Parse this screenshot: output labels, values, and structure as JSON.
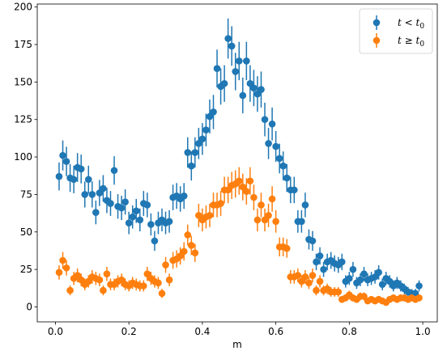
{
  "chart_data": {
    "type": "scatter",
    "title": "",
    "xlabel": "m",
    "ylabel": "",
    "xlim": [
      -0.0495,
      1.0395
    ],
    "ylim": [
      -10,
      202
    ],
    "xticks": [
      0.0,
      0.2,
      0.4,
      0.6,
      0.8,
      1.0
    ],
    "yticks": [
      0,
      25,
      50,
      75,
      100,
      125,
      150,
      175,
      200
    ],
    "xtick_labels": [
      "0.0",
      "0.2",
      "0.4",
      "0.6",
      "0.8",
      "1.0"
    ],
    "ytick_labels": [
      "0",
      "25",
      "50",
      "75",
      "100",
      "125",
      "150",
      "175",
      "200"
    ],
    "grid": false,
    "legend_position": "top-right",
    "x": [
      0.01,
      0.02,
      0.03,
      0.04,
      0.05,
      0.06,
      0.07,
      0.08,
      0.09,
      0.1,
      0.11,
      0.12,
      0.13,
      0.14,
      0.15,
      0.16,
      0.17,
      0.18,
      0.19,
      0.2,
      0.21,
      0.22,
      0.23,
      0.24,
      0.25,
      0.26,
      0.27,
      0.28,
      0.29,
      0.3,
      0.31,
      0.32,
      0.33,
      0.34,
      0.35,
      0.36,
      0.37,
      0.38,
      0.39,
      0.4,
      0.41,
      0.42,
      0.43,
      0.44,
      0.45,
      0.46,
      0.47,
      0.48,
      0.49,
      0.5,
      0.51,
      0.52,
      0.53,
      0.54,
      0.55,
      0.56,
      0.57,
      0.58,
      0.59,
      0.6,
      0.61,
      0.62,
      0.63,
      0.64,
      0.65,
      0.66,
      0.67,
      0.68,
      0.69,
      0.7,
      0.71,
      0.72,
      0.73,
      0.74,
      0.75,
      0.76,
      0.77,
      0.78,
      0.79,
      0.8,
      0.81,
      0.82,
      0.83,
      0.84,
      0.85,
      0.86,
      0.87,
      0.88,
      0.89,
      0.9,
      0.91,
      0.92,
      0.93,
      0.94,
      0.95,
      0.96,
      0.97,
      0.98,
      0.99
    ],
    "series": [
      {
        "name": "t < t₀",
        "legend_main": "t",
        "legend_rel": " < ",
        "legend_sub_base": "t",
        "legend_sub": "0",
        "color": "#1f77b4",
        "values": [
          87,
          101,
          97,
          86,
          85,
          93,
          92,
          75,
          85,
          75,
          63,
          76,
          79,
          71,
          69,
          91,
          67,
          66,
          70,
          56,
          60,
          64,
          58,
          69,
          68,
          55,
          44,
          56,
          58,
          56,
          57,
          73,
          74,
          72,
          74,
          103,
          94,
          103,
          109,
          112,
          118,
          127,
          130,
          159,
          147,
          149,
          179,
          174,
          157,
          164,
          141,
          164,
          149,
          146,
          142,
          145,
          125,
          109,
          122,
          107,
          99,
          94,
          86,
          78,
          78,
          57,
          57,
          68,
          45,
          44,
          30,
          34,
          25,
          30,
          31,
          29,
          28,
          30,
          17,
          19,
          25,
          16,
          18,
          22,
          18,
          19,
          20,
          23,
          15,
          19,
          17,
          14,
          16,
          14,
          12,
          10,
          9,
          9,
          14
        ],
        "errors": [
          9.3,
          10.0,
          9.8,
          9.3,
          9.2,
          9.6,
          9.6,
          8.7,
          9.2,
          8.7,
          7.9,
          8.7,
          8.9,
          8.4,
          8.3,
          9.5,
          8.2,
          8.1,
          8.4,
          7.5,
          7.7,
          8.0,
          7.6,
          8.3,
          8.2,
          7.4,
          6.6,
          7.5,
          7.6,
          7.5,
          7.5,
          8.5,
          8.6,
          8.5,
          8.6,
          10.1,
          9.7,
          10.1,
          10.4,
          10.6,
          10.9,
          11.3,
          11.4,
          12.6,
          12.1,
          12.2,
          13.4,
          13.2,
          12.5,
          12.8,
          11.9,
          12.8,
          12.2,
          12.1,
          11.9,
          12.0,
          11.2,
          10.4,
          11.0,
          10.3,
          9.9,
          9.7,
          9.3,
          8.8,
          8.8,
          7.5,
          7.5,
          8.2,
          6.7,
          6.6,
          5.5,
          5.8,
          5.0,
          5.5,
          5.6,
          5.4,
          5.3,
          5.5,
          4.1,
          4.4,
          5.0,
          4.0,
          4.2,
          4.7,
          4.2,
          4.4,
          4.5,
          4.8,
          3.9,
          4.4,
          4.1,
          3.7,
          4.0,
          3.7,
          3.5,
          3.2,
          3.0,
          3.0,
          3.7
        ]
      },
      {
        "name": "t ≥ t₀",
        "legend_main": "t",
        "legend_rel": " ≥ ",
        "legend_sub_base": "t",
        "legend_sub": "0",
        "color": "#ff7f0e",
        "values": [
          23,
          31,
          26,
          11,
          19,
          21,
          18,
          15,
          17,
          20,
          19,
          18,
          11,
          22,
          15,
          15,
          17,
          18,
          15,
          14,
          16,
          15,
          14,
          14,
          22,
          19,
          17,
          16,
          9,
          28,
          18,
          31,
          32,
          34,
          37,
          48,
          41,
          36,
          61,
          58,
          60,
          61,
          68,
          68,
          69,
          78,
          78,
          81,
          82,
          84,
          80,
          77,
          84,
          73,
          58,
          68,
          58,
          61,
          72,
          57,
          40,
          40,
          39,
          20,
          20,
          21,
          17,
          20,
          16,
          21,
          11,
          17,
          11,
          12,
          10,
          10,
          10,
          5,
          6,
          8,
          6,
          5,
          7,
          7,
          4,
          5,
          4,
          5,
          4,
          3,
          5,
          6,
          5,
          6,
          6,
          5,
          6,
          5,
          6
        ],
        "errors": [
          4.8,
          5.6,
          5.1,
          3.3,
          4.4,
          4.6,
          4.2,
          3.9,
          4.1,
          4.5,
          4.4,
          4.2,
          3.3,
          4.7,
          3.9,
          3.9,
          4.1,
          4.2,
          3.9,
          3.7,
          4.0,
          3.9,
          3.7,
          3.7,
          4.7,
          4.4,
          4.1,
          4.0,
          3.0,
          5.3,
          4.2,
          5.6,
          5.7,
          5.8,
          6.1,
          6.9,
          6.4,
          6.0,
          7.8,
          7.6,
          7.7,
          7.8,
          8.2,
          8.2,
          8.3,
          8.8,
          8.8,
          9.0,
          9.1,
          9.2,
          8.9,
          8.8,
          9.2,
          8.5,
          7.6,
          8.2,
          7.6,
          7.8,
          8.5,
          7.5,
          6.3,
          6.3,
          6.2,
          4.5,
          4.5,
          4.6,
          4.1,
          4.5,
          4.0,
          4.6,
          3.3,
          4.1,
          3.3,
          3.5,
          3.2,
          3.2,
          3.2,
          2.2,
          2.4,
          2.8,
          2.4,
          2.2,
          2.6,
          2.6,
          2.0,
          2.2,
          2.0,
          2.2,
          2.0,
          1.7,
          2.2,
          2.4,
          2.2,
          2.4,
          2.4,
          2.2,
          2.4,
          2.2,
          2.4
        ]
      }
    ]
  }
}
